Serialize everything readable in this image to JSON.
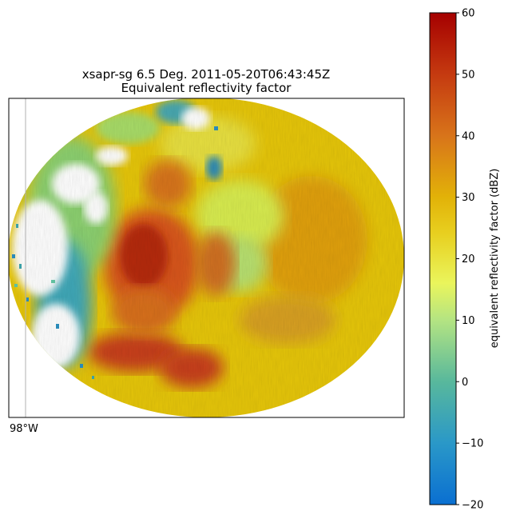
{
  "plot": {
    "title_line1": "xsapr-sg 6.5 Deg. 2011-05-20T06:43:45Z",
    "title_line2": "Equivalent reflectivity factor",
    "longitude_label": "98°W"
  },
  "colorbar": {
    "label": "equivalent reflectivity factor (dBZ)",
    "range": [
      -20,
      60
    ],
    "ticks": [
      {
        "value": 60,
        "label": "60"
      },
      {
        "value": 50,
        "label": "50"
      },
      {
        "value": 40,
        "label": "40"
      },
      {
        "value": 30,
        "label": "30"
      },
      {
        "value": 20,
        "label": "20"
      },
      {
        "value": 10,
        "label": "10"
      },
      {
        "value": 0,
        "label": "0"
      },
      {
        "value": -10,
        "label": "−10"
      },
      {
        "value": -20,
        "label": "−20"
      }
    ],
    "colors": {
      "low": "#0a6fd1",
      "mid_low": "#4fb8a8",
      "mid": "#e8f55a",
      "mid_high": "#e8c000",
      "high": "#d2531e",
      "top": "#a50000"
    }
  }
}
